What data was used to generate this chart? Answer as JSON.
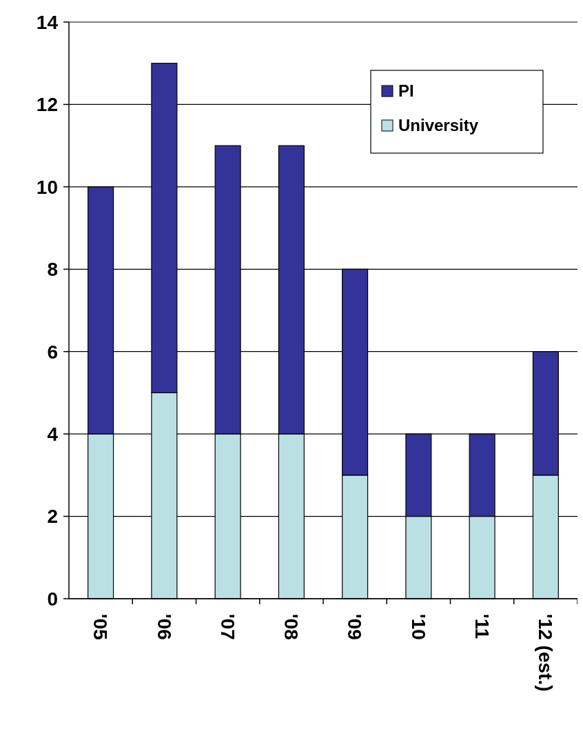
{
  "chart_data": {
    "type": "bar",
    "stacked": true,
    "categories": [
      "'05",
      "'06",
      "'07",
      "'08",
      "'09",
      "'10",
      "'11",
      "'12 (est.)"
    ],
    "series": [
      {
        "name": "University",
        "color": "#bbe0e3",
        "values": [
          4,
          5,
          4,
          4,
          3,
          2,
          2,
          3
        ]
      },
      {
        "name": "PI",
        "color": "#333399",
        "values": [
          6,
          8,
          7,
          7,
          5,
          2,
          2,
          3
        ]
      }
    ],
    "ylim": [
      0,
      14
    ],
    "yticks": [
      0,
      2,
      4,
      6,
      8,
      10,
      12,
      14
    ],
    "grid": "y",
    "legend": "top right"
  }
}
